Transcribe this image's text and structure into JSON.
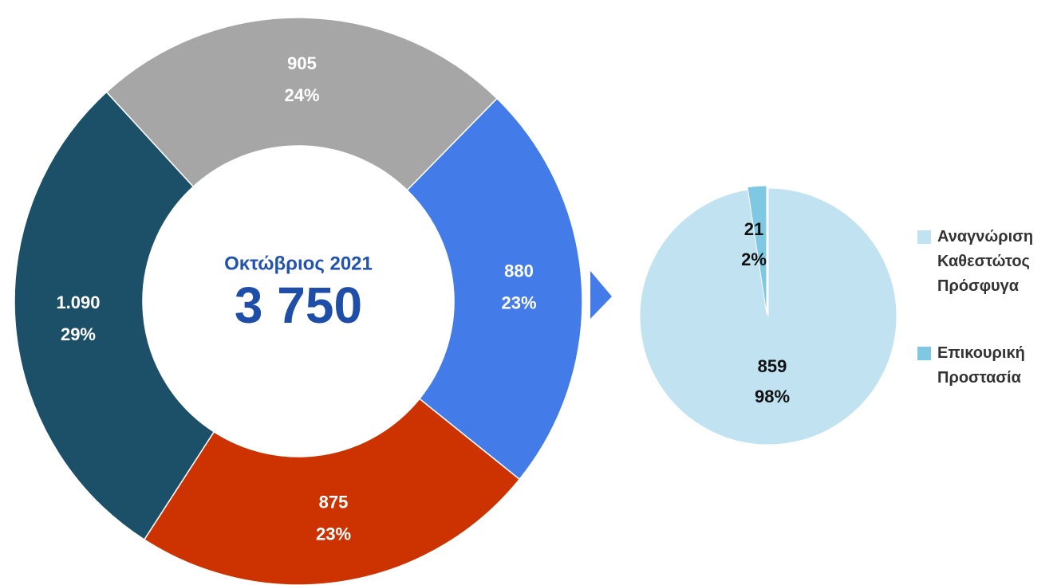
{
  "chart_data": [
    {
      "type": "donut",
      "title": "Οκτώβριος 2021",
      "total": 3750,
      "total_label": "3 750",
      "values": [
        905,
        880,
        875,
        1090
      ],
      "value_labels": [
        "905",
        "880",
        "875",
        "1.090"
      ],
      "percents": [
        24,
        23,
        23,
        29
      ],
      "percent_labels": [
        "24%",
        "23%",
        "23%",
        "29%"
      ],
      "colors": [
        "#a6a6a6",
        "#437ce8",
        "#cc3300",
        "#1b5068"
      ]
    },
    {
      "type": "pie",
      "categories": [
        "Αναγνώριση Καθεστώτος Πρόσφυγα",
        "Επικουρική Προστασία"
      ],
      "values": [
        859,
        21
      ],
      "percents": [
        98,
        2
      ],
      "percent_labels": [
        "98%",
        "2%"
      ],
      "colors": [
        "#c0e2f1",
        "#7ec8e3"
      ],
      "legend": "right"
    }
  ]
}
